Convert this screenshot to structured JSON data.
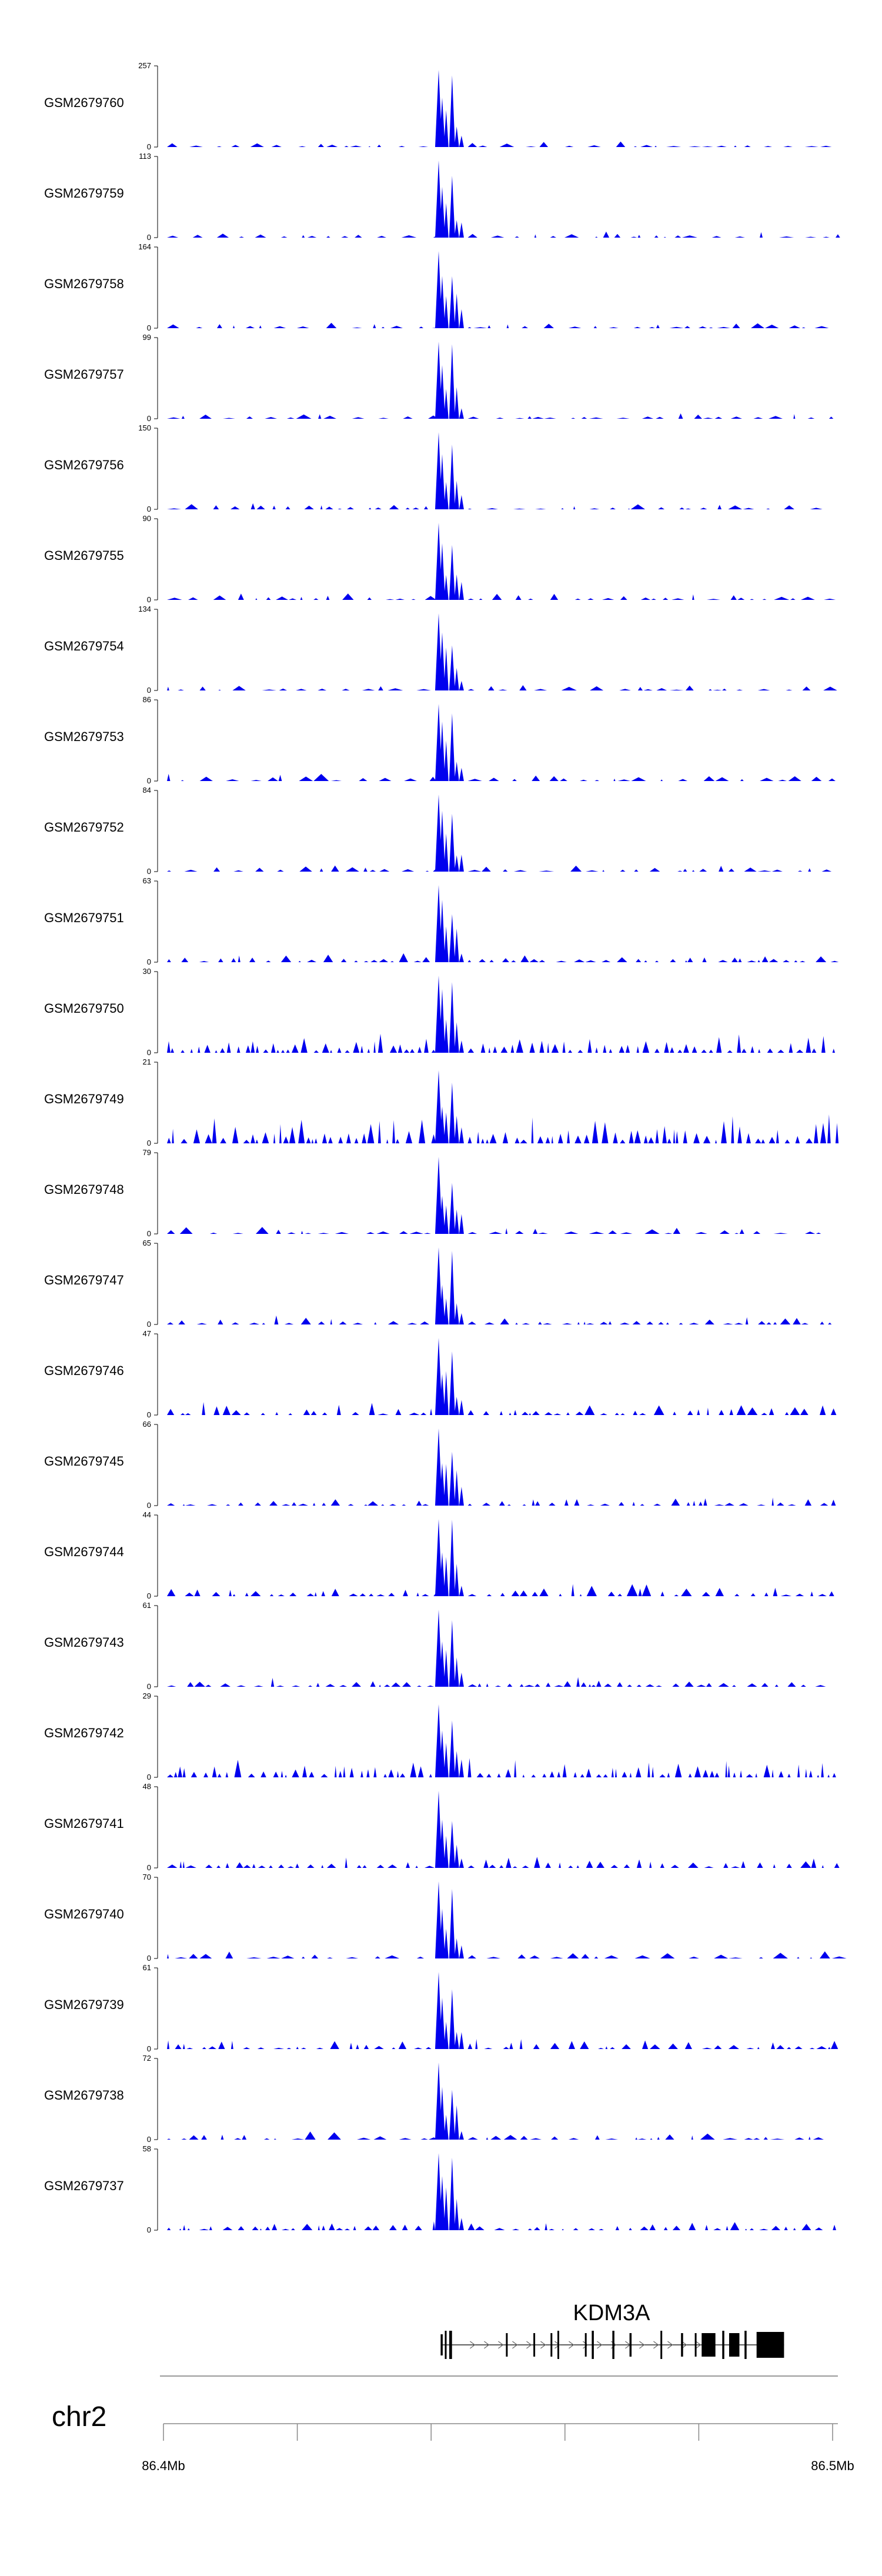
{
  "chart_data": {
    "type": "area",
    "title": "",
    "chromosome": "chr2",
    "x_range_mb": [
      86.4,
      86.5
    ],
    "axis_labels": {
      "start": "86.4Mb",
      "end": "86.5Mb"
    },
    "gene": {
      "name": "KDM3A",
      "start_mb": 86.441,
      "end_mb": 86.492
    },
    "peak_region_mb": [
      86.4405,
      86.4445
    ],
    "series": [
      {
        "name": "GSM2679760",
        "ymin": 0,
        "ymax": 257,
        "ymin_label": "0",
        "ymax_label": "257",
        "peak_fraction": 0.95
      },
      {
        "name": "GSM2679759",
        "ymin": 0,
        "ymax": 113,
        "ymin_label": "0",
        "ymax_label": "113",
        "peak_fraction": 0.95
      },
      {
        "name": "GSM2679758",
        "ymin": 0,
        "ymax": 164,
        "ymin_label": "0",
        "ymax_label": "164",
        "peak_fraction": 0.95
      },
      {
        "name": "GSM2679757",
        "ymin": 0,
        "ymax": 99,
        "ymin_label": "0",
        "ymax_label": "99",
        "peak_fraction": 0.95
      },
      {
        "name": "GSM2679756",
        "ymin": 0,
        "ymax": 150,
        "ymin_label": "0",
        "ymax_label": "150",
        "peak_fraction": 0.95
      },
      {
        "name": "GSM2679755",
        "ymin": 0,
        "ymax": 90,
        "ymin_label": "0",
        "ymax_label": "90",
        "peak_fraction": 0.95
      },
      {
        "name": "GSM2679754",
        "ymin": 0,
        "ymax": 134,
        "ymin_label": "0",
        "ymax_label": "134",
        "peak_fraction": 0.95
      },
      {
        "name": "GSM2679753",
        "ymin": 0,
        "ymax": 86,
        "ymin_label": "0",
        "ymax_label": "86",
        "peak_fraction": 0.95
      },
      {
        "name": "GSM2679752",
        "ymin": 0,
        "ymax": 84,
        "ymin_label": "0",
        "ymax_label": "84",
        "peak_fraction": 0.95
      },
      {
        "name": "GSM2679751",
        "ymin": 0,
        "ymax": 63,
        "ymin_label": "0",
        "ymax_label": "63",
        "peak_fraction": 0.95
      },
      {
        "name": "GSM2679750",
        "ymin": 0,
        "ymax": 30,
        "ymin_label": "0",
        "ymax_label": "30",
        "peak_fraction": 0.95
      },
      {
        "name": "GSM2679749",
        "ymin": 0,
        "ymax": 21,
        "ymin_label": "0",
        "ymax_label": "21",
        "peak_fraction": 0.9
      },
      {
        "name": "GSM2679748",
        "ymin": 0,
        "ymax": 79,
        "ymin_label": "0",
        "ymax_label": "79",
        "peak_fraction": 0.95
      },
      {
        "name": "GSM2679747",
        "ymin": 0,
        "ymax": 65,
        "ymin_label": "0",
        "ymax_label": "65",
        "peak_fraction": 0.95
      },
      {
        "name": "GSM2679746",
        "ymin": 0,
        "ymax": 47,
        "ymin_label": "0",
        "ymax_label": "47",
        "peak_fraction": 0.95
      },
      {
        "name": "GSM2679745",
        "ymin": 0,
        "ymax": 66,
        "ymin_label": "0",
        "ymax_label": "66",
        "peak_fraction": 0.95
      },
      {
        "name": "GSM2679744",
        "ymin": 0,
        "ymax": 44,
        "ymin_label": "0",
        "ymax_label": "44",
        "peak_fraction": 0.95
      },
      {
        "name": "GSM2679743",
        "ymin": 0,
        "ymax": 61,
        "ymin_label": "0",
        "ymax_label": "61",
        "peak_fraction": 0.95
      },
      {
        "name": "GSM2679742",
        "ymin": 0,
        "ymax": 29,
        "ymin_label": "0",
        "ymax_label": "29",
        "peak_fraction": 0.9
      },
      {
        "name": "GSM2679741",
        "ymin": 0,
        "ymax": 48,
        "ymin_label": "0",
        "ymax_label": "48",
        "peak_fraction": 0.95
      },
      {
        "name": "GSM2679740",
        "ymin": 0,
        "ymax": 70,
        "ymin_label": "0",
        "ymax_label": "70",
        "peak_fraction": 0.95
      },
      {
        "name": "GSM2679739",
        "ymin": 0,
        "ymax": 61,
        "ymin_label": "0",
        "ymax_label": "61",
        "peak_fraction": 0.95
      },
      {
        "name": "GSM2679738",
        "ymin": 0,
        "ymax": 72,
        "ymin_label": "0",
        "ymax_label": "72",
        "peak_fraction": 0.95
      },
      {
        "name": "GSM2679737",
        "ymin": 0,
        "ymax": 58,
        "ymin_label": "0",
        "ymax_label": "58",
        "peak_fraction": 0.95
      }
    ]
  },
  "colors": {
    "signal": "#0000ee",
    "axis": "#000000",
    "gene": "#000000",
    "chrom_line": "#999999",
    "ruler": "#888888"
  }
}
